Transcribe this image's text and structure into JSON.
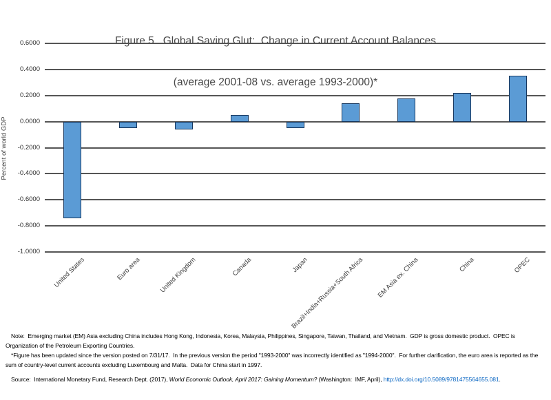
{
  "chart_data": {
    "type": "bar",
    "title": "Figure 5.  Global Saving Glut:  Change in Current Account Balances",
    "subtitle": "(average 2001-08 vs. average 1993-2000)*",
    "xlabel": "",
    "ylabel": "Percent of world GDP",
    "categories": [
      "United States",
      "Euro area",
      "United Kingdom",
      "Canada",
      "Japan",
      "Brazil+India+Russia+South Africa",
      "EM Asia ex. China",
      "China",
      "OPEC"
    ],
    "values": [
      -0.74,
      -0.05,
      -0.06,
      0.05,
      -0.05,
      0.14,
      0.18,
      0.22,
      0.35
    ],
    "ylim": [
      -1.0,
      0.6
    ],
    "ytick_step": 0.2,
    "ytick_labels": [
      "0.6000",
      "0.4000",
      "0.2000",
      "0.0000",
      "-0.2000",
      "-0.4000",
      "-0.6000",
      "-0.8000",
      "-1.0000"
    ],
    "grid": true,
    "legend": "none",
    "bar_color": "#5B9BD5",
    "bar_border_color": "#17375E",
    "gridline_color": "#555555"
  },
  "footer": {
    "note": "Note:  Emerging market (EM) Asia excluding China includes Hong Kong, Indonesia, Korea, Malaysia, Philippines, Singapore, Taiwan, Thailand, and Vietnam.  GDP is gross domestic product.  OPEC is Organization of the Petroleum Exporting Countries.",
    "update_note": "*Figure has been updated since the version posted on 7/31/17.  In the previous version the period \"1993-2000\" was incorrectly identified as \"1994-2000\".  For further clarification, the euro area is reported as the sum of country-level current accounts excluding Luxembourg and Malta.  Data for China start in 1997.",
    "source_prefix": "Source:  International Monetary Fund, Research Dept. (2017), ",
    "source_italic": "World Economic Outlook, April 2017: Gaining Momentum?",
    "source_middle": " (Washington:  IMF, April), ",
    "source_link": "http://dx.doi.org/10.5089/9781475564655.081",
    "source_suffix": ".",
    "link_color": "#0563C1"
  }
}
